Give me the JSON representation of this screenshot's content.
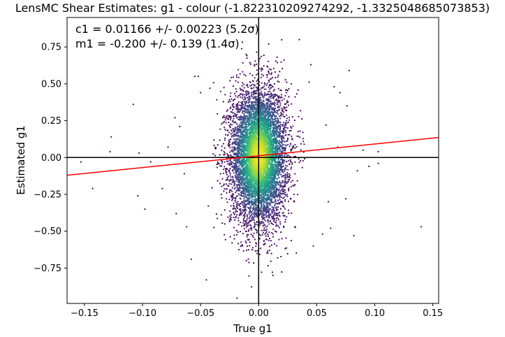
{
  "chart_data": {
    "type": "scatter",
    "title": "LensMC Shear Estimates: g1  - colour (-1.822310209274292, -1.3325048685073853)",
    "xlabel": "True g1",
    "ylabel": "Estimated g1",
    "xlim": [
      -0.165,
      0.155
    ],
    "ylim": [
      -0.99,
      0.95
    ],
    "xticks": [
      -0.15,
      -0.1,
      -0.05,
      0.0,
      0.05,
      0.1,
      0.15
    ],
    "xtick_labels": [
      "−0.15",
      "−0.10",
      "−0.05",
      "0.00",
      "0.05",
      "0.10",
      "0.15"
    ],
    "yticks": [
      -0.75,
      -0.5,
      -0.25,
      0.0,
      0.25,
      0.5,
      0.75
    ],
    "ytick_labels": [
      "−0.75",
      "−0.50",
      "−0.25",
      "0.00",
      "0.25",
      "0.50",
      "0.75"
    ],
    "annotations": [
      "c1 = 0.01166 +/- 0.00223 (5.2σ)",
      "m1 = -0.200 +/- 0.139 (1.4σ)"
    ],
    "fit_line": {
      "intercept": 0.01166,
      "slope": 0.8,
      "color": "#ff0000"
    },
    "reference_lines": {
      "x": 0.0,
      "y": 0.0,
      "color": "#000000"
    },
    "colormap": "viridis",
    "point_distribution": {
      "x_mean": 0.0,
      "x_std": 0.012,
      "y_mean": 0.01,
      "y_std": 0.23
    },
    "outlier_points": [
      {
        "x": -0.153,
        "y": -0.03
      },
      {
        "x": -0.143,
        "y": -0.21
      },
      {
        "x": -0.127,
        "y": 0.14
      },
      {
        "x": -0.128,
        "y": 0.04
      },
      {
        "x": -0.108,
        "y": 0.36
      },
      {
        "x": -0.104,
        "y": -0.26
      },
      {
        "x": -0.103,
        "y": 0.03
      },
      {
        "x": -0.098,
        "y": -0.35
      },
      {
        "x": -0.093,
        "y": -0.03
      },
      {
        "x": -0.083,
        "y": -0.21
      },
      {
        "x": -0.078,
        "y": 0.07
      },
      {
        "x": -0.072,
        "y": 0.27
      },
      {
        "x": -0.071,
        "y": -0.38
      },
      {
        "x": -0.068,
        "y": 0.21
      },
      {
        "x": -0.064,
        "y": -0.11
      },
      {
        "x": -0.062,
        "y": -0.47
      },
      {
        "x": -0.058,
        "y": -0.69
      },
      {
        "x": -0.055,
        "y": 0.55
      },
      {
        "x": -0.052,
        "y": 0.55
      },
      {
        "x": -0.05,
        "y": 0.44
      },
      {
        "x": -0.045,
        "y": -0.83
      },
      {
        "x": -0.042,
        "y": 0.47
      },
      {
        "x": 0.035,
        "y": 0.8
      },
      {
        "x": 0.045,
        "y": 0.63
      },
      {
        "x": 0.047,
        "y": -0.6
      },
      {
        "x": 0.055,
        "y": -0.52
      },
      {
        "x": 0.062,
        "y": -0.48
      },
      {
        "x": 0.065,
        "y": 0.48
      },
      {
        "x": 0.07,
        "y": 0.44
      },
      {
        "x": 0.076,
        "y": 0.35
      },
      {
        "x": 0.078,
        "y": 0.59
      },
      {
        "x": 0.082,
        "y": -0.53
      },
      {
        "x": 0.085,
        "y": -0.09
      },
      {
        "x": 0.09,
        "y": 0.05
      },
      {
        "x": 0.095,
        "y": -0.06
      },
      {
        "x": 0.103,
        "y": 0.04
      },
      {
        "x": 0.103,
        "y": -0.04
      },
      {
        "x": 0.14,
        "y": -0.47
      },
      {
        "x": 0.068,
        "y": 0.07
      },
      {
        "x": 0.075,
        "y": -0.28
      },
      {
        "x": 0.058,
        "y": 0.22
      },
      {
        "x": 0.06,
        "y": -0.3
      }
    ]
  }
}
